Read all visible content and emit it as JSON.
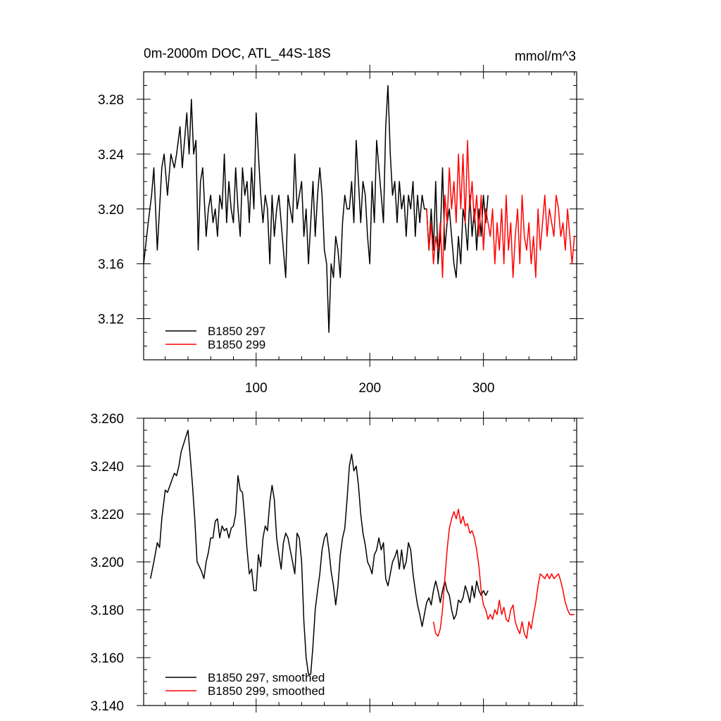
{
  "chart_data": [
    {
      "type": "line",
      "title": "0m-2000m DOC, ATL_44S-18S",
      "units": "mmol/m^3",
      "xlabel": "",
      "ylabel": "",
      "xlim": [
        1,
        382
      ],
      "ylim": [
        3.09,
        3.3
      ],
      "xticks": [
        100,
        200,
        300
      ],
      "xtick_labels": [
        "100",
        "200",
        "300"
      ],
      "yticks": [
        3.12,
        3.16,
        3.2,
        3.24,
        3.28
      ],
      "ytick_labels": [
        "3.12",
        "3.16",
        "3.20",
        "3.24",
        "3.28"
      ],
      "legend_position": "bottom-left",
      "series": [
        {
          "name": "B1850 297",
          "color": "#000000",
          "x": [
            1,
            5,
            8,
            10,
            13,
            15,
            17,
            19,
            22,
            25,
            28,
            30,
            33,
            35,
            37,
            39,
            41,
            43,
            45,
            47,
            49,
            51,
            53,
            56,
            58,
            60,
            62,
            64,
            66,
            68,
            70,
            72,
            74,
            76,
            78,
            80,
            82,
            84,
            86,
            88,
            90,
            92,
            94,
            96,
            98,
            100,
            102,
            104,
            106,
            108,
            110,
            112,
            114,
            116,
            118,
            120,
            122,
            124,
            126,
            128,
            130,
            132,
            134,
            136,
            138,
            140,
            142,
            144,
            146,
            148,
            150,
            152,
            154,
            156,
            158,
            160,
            162,
            164,
            166,
            168,
            170,
            172,
            174,
            176,
            178,
            180,
            182,
            184,
            186,
            188,
            190,
            192,
            194,
            196,
            198,
            200,
            202,
            204,
            206,
            208,
            210,
            212,
            214,
            216,
            218,
            220,
            222,
            224,
            226,
            228,
            230,
            232,
            234,
            236,
            238,
            240,
            242,
            244,
            246,
            248,
            250,
            252,
            254,
            256,
            258,
            260,
            262,
            264,
            266,
            268,
            270,
            272,
            274,
            276,
            278,
            280,
            282,
            284,
            286,
            288,
            290,
            292,
            294,
            296,
            298,
            300,
            302,
            304
          ],
          "y": [
            3.16,
            3.19,
            3.21,
            3.23,
            3.17,
            3.2,
            3.23,
            3.24,
            3.21,
            3.24,
            3.23,
            3.24,
            3.26,
            3.23,
            3.25,
            3.27,
            3.24,
            3.28,
            3.24,
            3.25,
            3.17,
            3.22,
            3.23,
            3.18,
            3.2,
            3.21,
            3.19,
            3.2,
            3.18,
            3.21,
            3.2,
            3.24,
            3.19,
            3.22,
            3.2,
            3.19,
            3.23,
            3.2,
            3.18,
            3.23,
            3.21,
            3.22,
            3.19,
            3.23,
            3.2,
            3.27,
            3.24,
            3.21,
            3.19,
            3.21,
            3.2,
            3.16,
            3.21,
            3.18,
            3.2,
            3.21,
            3.19,
            3.17,
            3.15,
            3.21,
            3.2,
            3.19,
            3.24,
            3.2,
            3.21,
            3.22,
            3.18,
            3.2,
            3.16,
            3.19,
            3.22,
            3.18,
            3.21,
            3.23,
            3.21,
            3.17,
            3.16,
            3.11,
            3.16,
            3.15,
            3.18,
            3.17,
            3.15,
            3.19,
            3.21,
            3.2,
            3.2,
            3.22,
            3.19,
            3.25,
            3.22,
            3.19,
            3.22,
            3.21,
            3.18,
            3.16,
            3.22,
            3.19,
            3.25,
            3.23,
            3.21,
            3.19,
            3.26,
            3.29,
            3.24,
            3.21,
            3.22,
            3.19,
            3.22,
            3.2,
            3.21,
            3.18,
            3.21,
            3.2,
            3.22,
            3.18,
            3.21,
            3.19,
            3.21,
            3.2,
            3.2,
            3.17,
            3.2,
            3.17,
            3.22,
            3.16,
            3.18,
            3.23,
            3.17,
            3.19,
            3.2,
            3.18,
            3.16,
            3.15,
            3.18,
            3.16,
            3.2,
            3.19,
            3.17,
            3.21,
            3.18,
            3.2,
            3.17,
            3.2,
            3.18,
            3.21,
            3.19,
            3.21
          ]
        },
        {
          "name": "B1850 299",
          "color": "#ff0000",
          "x": [
            250,
            252,
            254,
            256,
            258,
            260,
            262,
            264,
            266,
            268,
            270,
            272,
            274,
            276,
            278,
            280,
            282,
            284,
            286,
            288,
            290,
            292,
            294,
            296,
            298,
            300,
            302,
            304,
            306,
            308,
            310,
            312,
            314,
            316,
            318,
            320,
            322,
            324,
            326,
            328,
            330,
            332,
            334,
            336,
            338,
            340,
            342,
            344,
            346,
            348,
            350,
            352,
            354,
            356,
            358,
            360,
            362,
            364,
            366,
            368,
            370,
            372,
            374,
            376,
            378,
            380
          ],
          "y": [
            3.2,
            3.17,
            3.19,
            3.16,
            3.18,
            3.17,
            3.19,
            3.15,
            3.21,
            3.19,
            3.23,
            3.2,
            3.22,
            3.19,
            3.24,
            3.2,
            3.24,
            3.19,
            3.25,
            3.2,
            3.22,
            3.19,
            3.21,
            3.18,
            3.21,
            3.17,
            3.2,
            3.19,
            3.18,
            3.2,
            3.16,
            3.19,
            3.17,
            3.2,
            3.16,
            3.21,
            3.17,
            3.19,
            3.15,
            3.18,
            3.2,
            3.16,
            3.21,
            3.18,
            3.17,
            3.19,
            3.16,
            3.18,
            3.15,
            3.2,
            3.17,
            3.19,
            3.21,
            3.18,
            3.2,
            3.19,
            3.18,
            3.21,
            3.2,
            3.18,
            3.19,
            3.17,
            3.2,
            3.18,
            3.16,
            3.18
          ]
        }
      ]
    },
    {
      "type": "line",
      "title": "",
      "xlabel": "",
      "ylabel": "",
      "xlim": [
        1,
        382
      ],
      "ylim": [
        3.14,
        3.26
      ],
      "xticks": [
        100,
        200,
        300
      ],
      "xtick_labels": [
        "",
        "",
        ""
      ],
      "yticks": [
        3.14,
        3.16,
        3.18,
        3.2,
        3.22,
        3.24,
        3.26
      ],
      "ytick_labels": [
        "3.140",
        "3.160",
        "3.180",
        "3.200",
        "3.220",
        "3.240",
        "3.260"
      ],
      "legend_position": "bottom-left",
      "series": [
        {
          "name": "B1850 297, smoothed",
          "color": "#000000",
          "x": [
            7,
            10,
            13,
            15,
            17,
            20,
            22,
            25,
            28,
            30,
            32,
            34,
            36,
            38,
            40,
            42,
            44,
            46,
            48,
            50,
            52,
            54,
            56,
            58,
            60,
            62,
            64,
            66,
            68,
            70,
            72,
            74,
            76,
            78,
            80,
            82,
            84,
            86,
            88,
            90,
            92,
            94,
            96,
            98,
            100,
            102,
            104,
            106,
            108,
            110,
            112,
            114,
            116,
            118,
            120,
            122,
            124,
            126,
            128,
            130,
            132,
            134,
            136,
            138,
            140,
            142,
            144,
            146,
            148,
            150,
            152,
            154,
            156,
            158,
            160,
            162,
            164,
            166,
            168,
            170,
            172,
            174,
            176,
            178,
            180,
            182,
            184,
            186,
            188,
            190,
            192,
            194,
            196,
            198,
            200,
            202,
            204,
            206,
            208,
            210,
            212,
            214,
            216,
            218,
            220,
            222,
            224,
            226,
            228,
            230,
            232,
            234,
            236,
            238,
            240,
            242,
            244,
            246,
            248,
            250,
            252,
            254,
            256,
            258,
            260,
            262,
            264,
            266,
            268,
            270,
            272,
            274,
            276,
            278,
            280,
            282,
            284,
            286,
            288,
            290,
            292,
            294,
            296,
            298,
            300,
            302,
            304
          ],
          "y": [
            3.193,
            3.2,
            3.208,
            3.206,
            3.218,
            3.23,
            3.229,
            3.233,
            3.237,
            3.236,
            3.24,
            3.246,
            3.249,
            3.252,
            3.255,
            3.244,
            3.232,
            3.218,
            3.2,
            3.198,
            3.196,
            3.193,
            3.2,
            3.204,
            3.21,
            3.21,
            3.217,
            3.218,
            3.21,
            3.215,
            3.213,
            3.214,
            3.21,
            3.214,
            3.215,
            3.22,
            3.236,
            3.23,
            3.229,
            3.218,
            3.205,
            3.195,
            3.197,
            3.188,
            3.188,
            3.203,
            3.198,
            3.21,
            3.215,
            3.213,
            3.225,
            3.232,
            3.226,
            3.21,
            3.203,
            3.197,
            3.208,
            3.212,
            3.21,
            3.205,
            3.2,
            3.195,
            3.212,
            3.21,
            3.2,
            3.175,
            3.16,
            3.153,
            3.153,
            3.165,
            3.18,
            3.188,
            3.195,
            3.205,
            3.21,
            3.212,
            3.205,
            3.196,
            3.19,
            3.182,
            3.19,
            3.203,
            3.21,
            3.214,
            3.226,
            3.24,
            3.245,
            3.238,
            3.24,
            3.232,
            3.22,
            3.212,
            3.207,
            3.2,
            3.198,
            3.195,
            3.203,
            3.205,
            3.21,
            3.205,
            3.208,
            3.193,
            3.19,
            3.195,
            3.2,
            3.202,
            3.205,
            3.197,
            3.205,
            3.197,
            3.2,
            3.208,
            3.205,
            3.195,
            3.188,
            3.182,
            3.178,
            3.173,
            3.178,
            3.183,
            3.185,
            3.182,
            3.188,
            3.192,
            3.188,
            3.183,
            3.188,
            3.192,
            3.188,
            3.186,
            3.18,
            3.176,
            3.178,
            3.184,
            3.183,
            3.185,
            3.19,
            3.187,
            3.183,
            3.19,
            3.185,
            3.192,
            3.188,
            3.186,
            3.188,
            3.186,
            3.188
          ]
        },
        {
          "name": "B1850 299, smoothed",
          "color": "#ff0000",
          "x": [
            256,
            258,
            260,
            262,
            264,
            266,
            268,
            270,
            272,
            274,
            276,
            278,
            280,
            282,
            284,
            286,
            288,
            290,
            292,
            294,
            296,
            298,
            300,
            302,
            304,
            306,
            308,
            310,
            312,
            314,
            316,
            318,
            320,
            322,
            324,
            326,
            328,
            330,
            332,
            334,
            336,
            338,
            340,
            342,
            344,
            346,
            348,
            350,
            352,
            354,
            356,
            358,
            360,
            362,
            364,
            366,
            368,
            370,
            372,
            374,
            376,
            378,
            380
          ],
          "y": [
            3.175,
            3.17,
            3.169,
            3.172,
            3.18,
            3.193,
            3.205,
            3.214,
            3.218,
            3.221,
            3.218,
            3.222,
            3.216,
            3.219,
            3.215,
            3.216,
            3.212,
            3.213,
            3.21,
            3.205,
            3.198,
            3.188,
            3.182,
            3.18,
            3.176,
            3.178,
            3.176,
            3.18,
            3.178,
            3.184,
            3.178,
            3.181,
            3.176,
            3.175,
            3.18,
            3.182,
            3.175,
            3.172,
            3.17,
            3.175,
            3.17,
            3.168,
            3.175,
            3.172,
            3.178,
            3.183,
            3.19,
            3.195,
            3.194,
            3.193,
            3.195,
            3.193,
            3.195,
            3.193,
            3.194,
            3.195,
            3.192,
            3.188,
            3.183,
            3.18,
            3.178,
            3.178,
            3.178
          ]
        }
      ]
    }
  ]
}
